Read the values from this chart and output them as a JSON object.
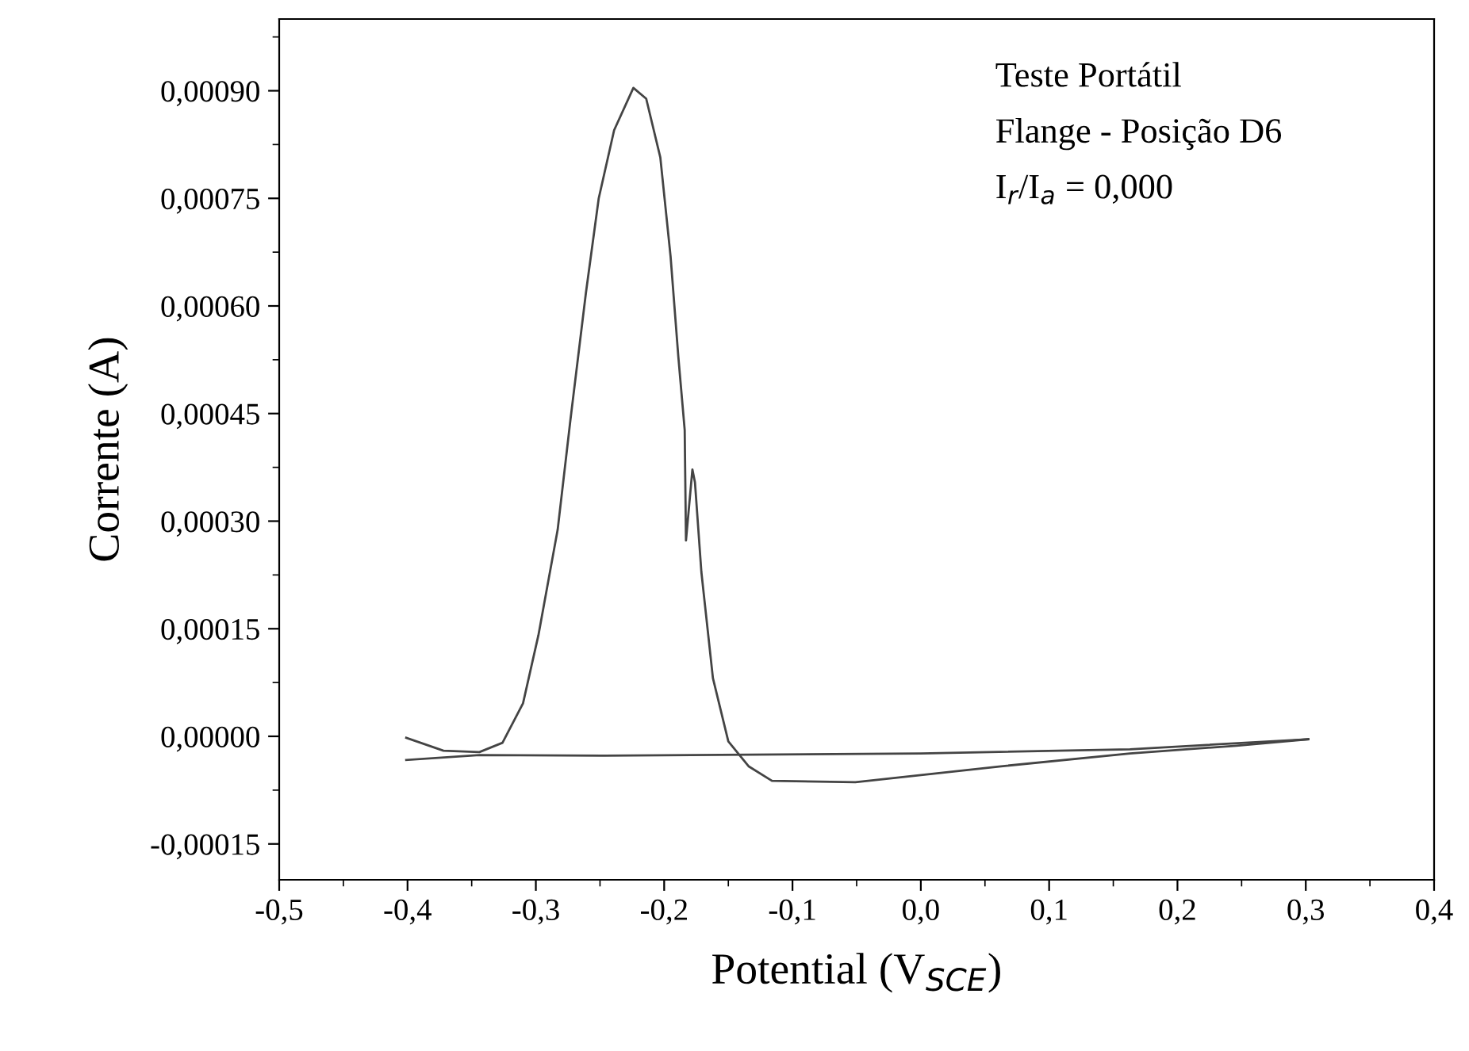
{
  "chart_data": {
    "type": "line",
    "xlabel": "Potential (V$_{SCE}$)",
    "ylabel": "Corrente (A)",
    "annotations": [
      "Teste Portátil",
      "Flange - Posição D6",
      "I$_{r}$/I$_{a}$ = 0,000"
    ],
    "series": [
      {
        "color": "#444444",
        "x": [
          -0.401,
          -0.372,
          -0.344,
          -0.326,
          -0.31,
          -0.298,
          -0.283,
          -0.273,
          -0.261,
          -0.251,
          -0.239,
          -0.224,
          -0.214,
          -0.203,
          -0.195,
          -0.189,
          -0.184,
          -0.183,
          -0.178,
          -0.176,
          -0.171,
          -0.162,
          -0.15,
          -0.134,
          -0.116,
          -0.051,
          0.061,
          0.163,
          0.246,
          0.302
        ],
        "values": [
          -2e-06,
          -2e-05,
          -2.2e-05,
          -9e-06,
          4.6e-05,
          0.000141,
          0.000288,
          0.000442,
          0.000618,
          0.00075,
          0.000845,
          0.000904,
          0.000889,
          0.000807,
          0.000669,
          0.00053,
          0.000427,
          0.000273,
          0.000372,
          0.000354,
          0.000229,
          8.1e-05,
          -7e-06,
          -4.2e-05,
          -6.2e-05,
          -6.4e-05,
          -4.2e-05,
          -2.4e-05,
          -1.3e-05,
          -4e-06
        ]
      },
      {
        "color": "#444444",
        "x": [
          -0.401,
          -0.344,
          -0.248,
          0.0,
          0.163,
          0.302
        ],
        "values": [
          -3.3e-05,
          -2.6e-05,
          -2.7e-05,
          -2.4e-05,
          -1.8e-05,
          -4e-06
        ]
      }
    ],
    "xlim": [
      -0.5,
      0.4
    ],
    "ylim": [
      -0.0002,
      0.001
    ],
    "xticks": [
      {
        "value": -0.5,
        "label": "-0,5"
      },
      {
        "value": -0.4,
        "label": "-0,4"
      },
      {
        "value": -0.3,
        "label": "-0,3"
      },
      {
        "value": -0.2,
        "label": "-0,2"
      },
      {
        "value": -0.1,
        "label": "-0,1"
      },
      {
        "value": 0.0,
        "label": "0,0"
      },
      {
        "value": 0.1,
        "label": "0,1"
      },
      {
        "value": 0.2,
        "label": "0,2"
      },
      {
        "value": 0.3,
        "label": "0,3"
      },
      {
        "value": 0.4,
        "label": "0,4"
      }
    ],
    "yticks": [
      {
        "value": -0.00015,
        "label": "-0,00015"
      },
      {
        "value": 0.0,
        "label": "0,00000"
      },
      {
        "value": 0.00015,
        "label": "0,00015"
      },
      {
        "value": 0.0003,
        "label": "0,00030"
      },
      {
        "value": 0.00045,
        "label": "0,00045"
      },
      {
        "value": 0.0006,
        "label": "0,00060"
      },
      {
        "value": 0.00075,
        "label": "0,00075"
      },
      {
        "value": 0.0009,
        "label": "0,00090"
      }
    ],
    "grid": false,
    "legend": false,
    "marker": "none",
    "line_style": "solid"
  }
}
